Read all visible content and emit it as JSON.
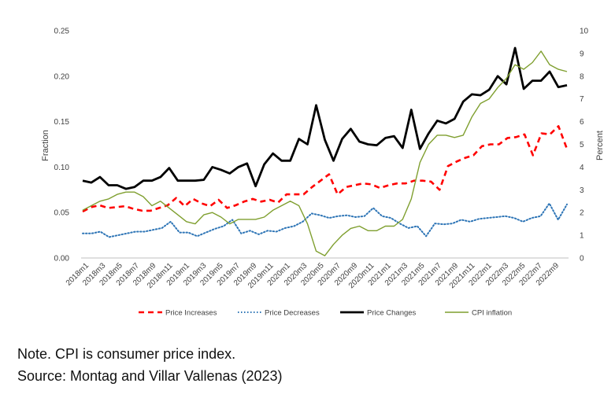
{
  "chart_data": {
    "type": "line",
    "ylabel": "Fraction",
    "y2label": "Percent",
    "ylim": [
      0,
      0.25
    ],
    "y2lim": [
      0,
      10
    ],
    "yticks": [
      "0.00",
      "0.05",
      "0.10",
      "0.15",
      "0.20",
      "0.25"
    ],
    "y2ticks": [
      "0",
      "1",
      "2",
      "3",
      "4",
      "5",
      "6",
      "7",
      "8",
      "9",
      "10"
    ],
    "xticks": [
      "2018m1",
      "2018m3",
      "2018m5",
      "2018m7",
      "2018m9",
      "2018m11",
      "2019m1",
      "2019m3",
      "2019m5",
      "2019m7",
      "2019m9",
      "2019m11",
      "2020m1",
      "2020m3",
      "2020m5",
      "2020m7",
      "2020m9",
      "2020m11",
      "2021m1",
      "2021m3",
      "2021m5",
      "2021m7",
      "2021m9",
      "2021m11",
      "2022m1",
      "2022m3",
      "2022m5",
      "2022m7",
      "2022m9"
    ],
    "legend_position": "bottom",
    "series": [
      {
        "name": "Price Increases",
        "axis": "left",
        "color": "#ff0000",
        "style": "dashed",
        "values": [
          0.051,
          0.056,
          0.058,
          0.055,
          0.056,
          0.057,
          0.054,
          0.052,
          0.052,
          0.055,
          0.058,
          0.066,
          0.057,
          0.065,
          0.06,
          0.057,
          0.064,
          0.055,
          0.058,
          0.062,
          0.065,
          0.062,
          0.064,
          0.061,
          0.07,
          0.07,
          0.07,
          0.078,
          0.085,
          0.092,
          0.07,
          0.078,
          0.08,
          0.082,
          0.081,
          0.077,
          0.08,
          0.082,
          0.082,
          0.085,
          0.085,
          0.084,
          0.075,
          0.101,
          0.106,
          0.11,
          0.113,
          0.123,
          0.125,
          0.125,
          0.132,
          0.133,
          0.136,
          0.113,
          0.137,
          0.136,
          0.145,
          0.12
        ]
      },
      {
        "name": "Price Decreases",
        "axis": "left",
        "color": "#2e75b6",
        "style": "dotted",
        "values": [
          0.027,
          0.027,
          0.029,
          0.023,
          0.025,
          0.027,
          0.029,
          0.029,
          0.031,
          0.033,
          0.04,
          0.028,
          0.028,
          0.024,
          0.028,
          0.032,
          0.035,
          0.042,
          0.027,
          0.03,
          0.026,
          0.03,
          0.029,
          0.033,
          0.035,
          0.04,
          0.049,
          0.047,
          0.044,
          0.046,
          0.047,
          0.045,
          0.046,
          0.055,
          0.046,
          0.044,
          0.038,
          0.033,
          0.035,
          0.024,
          0.038,
          0.037,
          0.038,
          0.042,
          0.04,
          0.043,
          0.044,
          0.045,
          0.046,
          0.044,
          0.04,
          0.044,
          0.046,
          0.06,
          0.042,
          0.059
        ]
      },
      {
        "name": "Price Changes",
        "axis": "left",
        "color": "#000000",
        "style": "solid",
        "values": [
          0.085,
          0.083,
          0.089,
          0.08,
          0.08,
          0.076,
          0.078,
          0.085,
          0.085,
          0.089,
          0.099,
          0.085,
          0.085,
          0.085,
          0.086,
          0.1,
          0.097,
          0.093,
          0.1,
          0.104,
          0.079,
          0.103,
          0.115,
          0.107,
          0.107,
          0.131,
          0.125,
          0.168,
          0.13,
          0.107,
          0.131,
          0.142,
          0.128,
          0.125,
          0.124,
          0.132,
          0.134,
          0.121,
          0.163,
          0.12,
          0.137,
          0.151,
          0.148,
          0.153,
          0.172,
          0.18,
          0.179,
          0.185,
          0.2,
          0.191,
          0.231,
          0.186,
          0.195,
          0.195,
          0.205,
          0.188,
          0.19
        ]
      },
      {
        "name": "CPI inflation",
        "axis": "right",
        "color": "#7f9f2f",
        "style": "solid",
        "values": [
          2.1,
          2.3,
          2.5,
          2.6,
          2.8,
          2.9,
          2.9,
          2.7,
          2.3,
          2.5,
          2.2,
          1.9,
          1.6,
          1.5,
          1.9,
          2.0,
          1.8,
          1.5,
          1.7,
          1.7,
          1.7,
          1.8,
          2.1,
          2.3,
          2.5,
          2.3,
          1.5,
          0.3,
          0.1,
          0.6,
          1.0,
          1.3,
          1.4,
          1.2,
          1.2,
          1.4,
          1.4,
          1.7,
          2.6,
          4.2,
          5.0,
          5.4,
          5.4,
          5.3,
          5.4,
          6.2,
          6.8,
          7.0,
          7.5,
          7.9,
          8.5,
          8.3,
          8.6,
          9.1,
          8.5,
          8.3,
          8.2
        ]
      }
    ]
  },
  "note": {
    "line1": "Note. CPI is consumer price index.",
    "line2": "Source: Montag and Villar Vallenas (2023)"
  }
}
